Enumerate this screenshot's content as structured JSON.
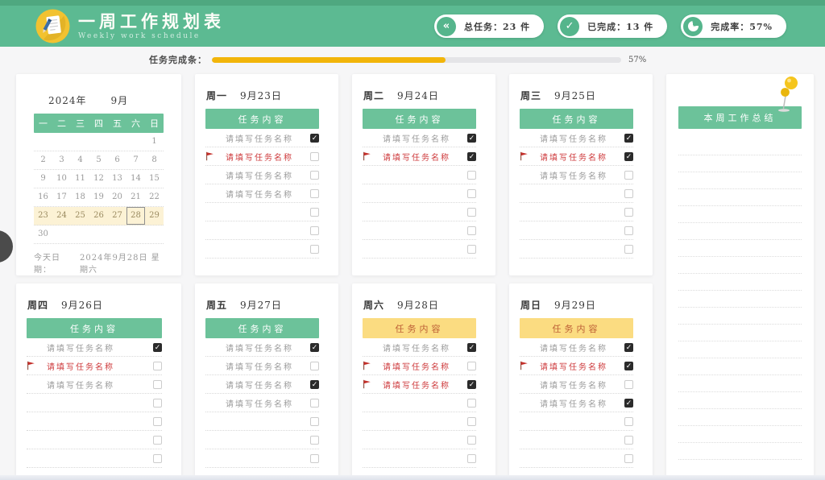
{
  "header": {
    "title": "一周工作规划表",
    "subtitle": "Weekly work schedule",
    "stats": [
      {
        "icon": "double-chevron-left-icon",
        "label": "总任务：",
        "value": "23 件"
      },
      {
        "icon": "check-circle-icon",
        "label": "已完成：",
        "value": "13 件"
      },
      {
        "icon": "pie-chart-icon",
        "label": "完成率：",
        "value": "57%"
      }
    ]
  },
  "progress": {
    "label": "任务完成条：",
    "percent": 57,
    "percent_label": "57%"
  },
  "calendar": {
    "year": "2024年",
    "month": "9月",
    "weekdays": [
      "一",
      "二",
      "三",
      "四",
      "五",
      "六",
      "日"
    ],
    "rows": [
      [
        "",
        "",
        "",
        "",
        "",
        "",
        "1"
      ],
      [
        "2",
        "3",
        "4",
        "5",
        "6",
        "7",
        "8"
      ],
      [
        "9",
        "10",
        "11",
        "12",
        "13",
        "14",
        "15"
      ],
      [
        "16",
        "17",
        "18",
        "19",
        "20",
        "21",
        "22"
      ],
      [
        "23",
        "24",
        "25",
        "26",
        "27",
        "28",
        "29"
      ],
      [
        "30",
        "",
        "",
        "",
        "",
        "",
        ""
      ]
    ],
    "highlighted_row": 4,
    "selected_date": "28",
    "today_label": "今天日期：",
    "today_value": "2024年9月28日 星期六"
  },
  "day_cards": {
    "column_header": "任务内容",
    "task_placeholder": "请填写任务名称",
    "days": [
      {
        "weekday": "周一",
        "date": "9月23日",
        "theme": "green",
        "tasks": [
          {
            "filled": true,
            "flag": false,
            "checked": true
          },
          {
            "filled": true,
            "flag": true,
            "checked": false
          },
          {
            "filled": true,
            "flag": false,
            "checked": false
          },
          {
            "filled": true,
            "flag": false,
            "checked": false
          },
          {
            "filled": false,
            "flag": false,
            "checked": false
          },
          {
            "filled": false,
            "flag": false,
            "checked": false
          },
          {
            "filled": false,
            "flag": false,
            "checked": false
          }
        ]
      },
      {
        "weekday": "周二",
        "date": "9月24日",
        "theme": "green",
        "tasks": [
          {
            "filled": true,
            "flag": false,
            "checked": true
          },
          {
            "filled": true,
            "flag": true,
            "checked": true
          },
          {
            "filled": false,
            "flag": false,
            "checked": false
          },
          {
            "filled": false,
            "flag": false,
            "checked": false
          },
          {
            "filled": false,
            "flag": false,
            "checked": false
          },
          {
            "filled": false,
            "flag": false,
            "checked": false
          },
          {
            "filled": false,
            "flag": false,
            "checked": false
          }
        ]
      },
      {
        "weekday": "周三",
        "date": "9月25日",
        "theme": "green",
        "tasks": [
          {
            "filled": true,
            "flag": false,
            "checked": true
          },
          {
            "filled": true,
            "flag": true,
            "checked": true
          },
          {
            "filled": true,
            "flag": false,
            "checked": false
          },
          {
            "filled": false,
            "flag": false,
            "checked": false
          },
          {
            "filled": false,
            "flag": false,
            "checked": false
          },
          {
            "filled": false,
            "flag": false,
            "checked": false
          },
          {
            "filled": false,
            "flag": false,
            "checked": false
          }
        ]
      },
      {
        "weekday": "周四",
        "date": "9月26日",
        "theme": "green",
        "tasks": [
          {
            "filled": true,
            "flag": false,
            "checked": true
          },
          {
            "filled": true,
            "flag": true,
            "checked": false
          },
          {
            "filled": true,
            "flag": false,
            "checked": false
          },
          {
            "filled": false,
            "flag": false,
            "checked": false
          },
          {
            "filled": false,
            "flag": false,
            "checked": false
          },
          {
            "filled": false,
            "flag": false,
            "checked": false
          },
          {
            "filled": false,
            "flag": false,
            "checked": false
          }
        ]
      },
      {
        "weekday": "周五",
        "date": "9月27日",
        "theme": "green",
        "tasks": [
          {
            "filled": true,
            "flag": false,
            "checked": true
          },
          {
            "filled": true,
            "flag": false,
            "checked": false
          },
          {
            "filled": true,
            "flag": false,
            "checked": true
          },
          {
            "filled": true,
            "flag": false,
            "checked": false
          },
          {
            "filled": false,
            "flag": false,
            "checked": false
          },
          {
            "filled": false,
            "flag": false,
            "checked": false
          },
          {
            "filled": false,
            "flag": false,
            "checked": false
          }
        ]
      },
      {
        "weekday": "周六",
        "date": "9月28日",
        "theme": "yellow",
        "tasks": [
          {
            "filled": true,
            "flag": false,
            "checked": true
          },
          {
            "filled": true,
            "flag": true,
            "checked": false
          },
          {
            "filled": true,
            "flag": true,
            "checked": true
          },
          {
            "filled": false,
            "flag": false,
            "checked": false
          },
          {
            "filled": false,
            "flag": false,
            "checked": false
          },
          {
            "filled": false,
            "flag": false,
            "checked": false
          },
          {
            "filled": false,
            "flag": false,
            "checked": false
          }
        ]
      },
      {
        "weekday": "周日",
        "date": "9月29日",
        "theme": "yellow",
        "tasks": [
          {
            "filled": true,
            "flag": false,
            "checked": true
          },
          {
            "filled": true,
            "flag": true,
            "checked": true
          },
          {
            "filled": true,
            "flag": false,
            "checked": false
          },
          {
            "filled": true,
            "flag": false,
            "checked": true
          },
          {
            "filled": false,
            "flag": false,
            "checked": false
          },
          {
            "filled": false,
            "flag": false,
            "checked": false
          },
          {
            "filled": false,
            "flag": false,
            "checked": false
          }
        ]
      }
    ]
  },
  "summary": {
    "title": "本周工作总结"
  },
  "colors": {
    "header_green": "#5cba92",
    "bar_green": "#6cc29a",
    "bar_yellow": "#fbdc81",
    "yellow_bar_text": "#bd5f36",
    "flag_red": "#ce3a3c",
    "progress_amber": "#f2b50a",
    "calendar_highlight": "#fcf2d5"
  }
}
